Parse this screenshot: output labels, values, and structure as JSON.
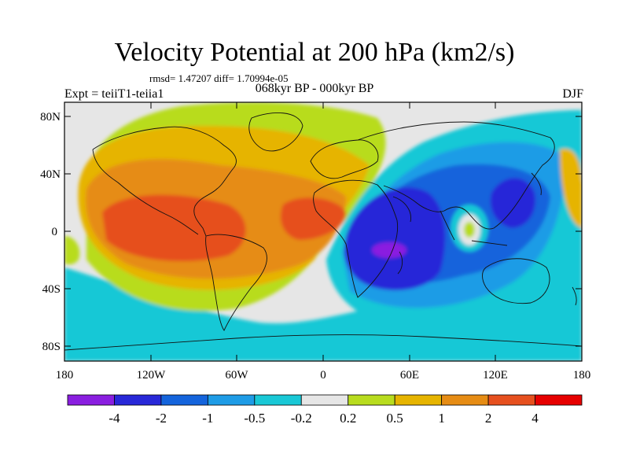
{
  "title": "Velocity Potential at 200 hPa (km2/s)",
  "stats": "rmsd= 1.47207 diff= 1.70994e-05",
  "left_label": "Expt = teiiT1-teiia1",
  "center_label": "068kyr BP - 000kyr BP",
  "right_label": "DJF",
  "axes": {
    "y_ticks": [
      "80N",
      "40N",
      "0",
      "40S",
      "80S"
    ],
    "x_ticks": [
      "180",
      "120W",
      "60W",
      "0",
      "60E",
      "120E",
      "180"
    ]
  },
  "colorbar": {
    "colors": [
      "#8a1ee0",
      "#2828d8",
      "#1464dc",
      "#1e9ce6",
      "#19c8d6",
      "#e6e6e6",
      "#b8dc1e",
      "#e6b400",
      "#e68c14",
      "#e6501e",
      "#e60000"
    ],
    "labels": [
      "-4",
      "-2",
      "-1",
      "-0.5",
      "-0.2",
      "0.2",
      "0.5",
      "1",
      "2",
      "4"
    ]
  },
  "chart_data": {
    "type": "heatmap",
    "title": "Velocity Potential at 200 hPa (km2/s)",
    "projection": "cylindrical equidistant",
    "lon_range": [
      -180,
      180
    ],
    "lat_range": [
      -90,
      90
    ],
    "contour_levels": [
      -4,
      -2,
      -1,
      -0.5,
      -0.2,
      0.2,
      0.5,
      1,
      2,
      4
    ],
    "anomaly_centers": [
      {
        "lon": -100,
        "lat": 0,
        "value": 3
      },
      {
        "lon": -30,
        "lat": 0,
        "value": 2
      },
      {
        "lon": 45,
        "lat": -20,
        "value": -4.5
      },
      {
        "lon": 130,
        "lat": 25,
        "value": -3
      },
      {
        "lon": 100,
        "lat": 0,
        "value": 0.5
      }
    ]
  }
}
